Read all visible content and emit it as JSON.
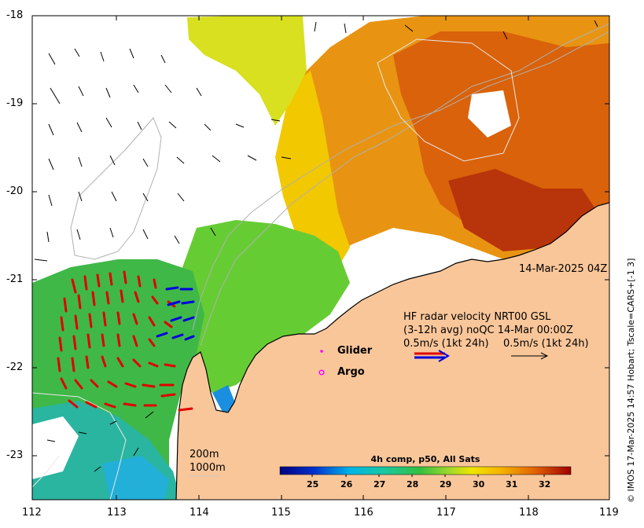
{
  "timestamp": "14-Mar-2025 04Z",
  "hf_radar": {
    "line1": "HF radar velocity  NRT00 GSL",
    "line2": "(3-12h avg) noQC 14-Mar 00:00Z",
    "scale_left": "0.5m/s (1kt 24h)",
    "scale_right": "0.5m/s (1kt 24h)"
  },
  "legend": {
    "glider": "Glider",
    "argo": "Argo"
  },
  "isobaths": {
    "shallow": "200m",
    "deep": "1000m"
  },
  "colorbar": {
    "title": "4h comp, p50, All Sats",
    "ticks": [
      "25",
      "26",
      "27",
      "28",
      "29",
      "30",
      "31",
      "32"
    ]
  },
  "axes": {
    "x_ticks": [
      "112",
      "113",
      "114",
      "115",
      "116",
      "117",
      "118",
      "119"
    ],
    "y_ticks": [
      "-18",
      "-19",
      "-20",
      "-21",
      "-22",
      "-23"
    ]
  },
  "credit": "© IMOS 17-Mar-2025 14:57 Hobart; Tscale=CARS+[-1 3]",
  "colors": {
    "land": "#f9c69a",
    "radar_red": "#e00000",
    "radar_blue": "#0000dd",
    "marker": "#ff00ff"
  }
}
